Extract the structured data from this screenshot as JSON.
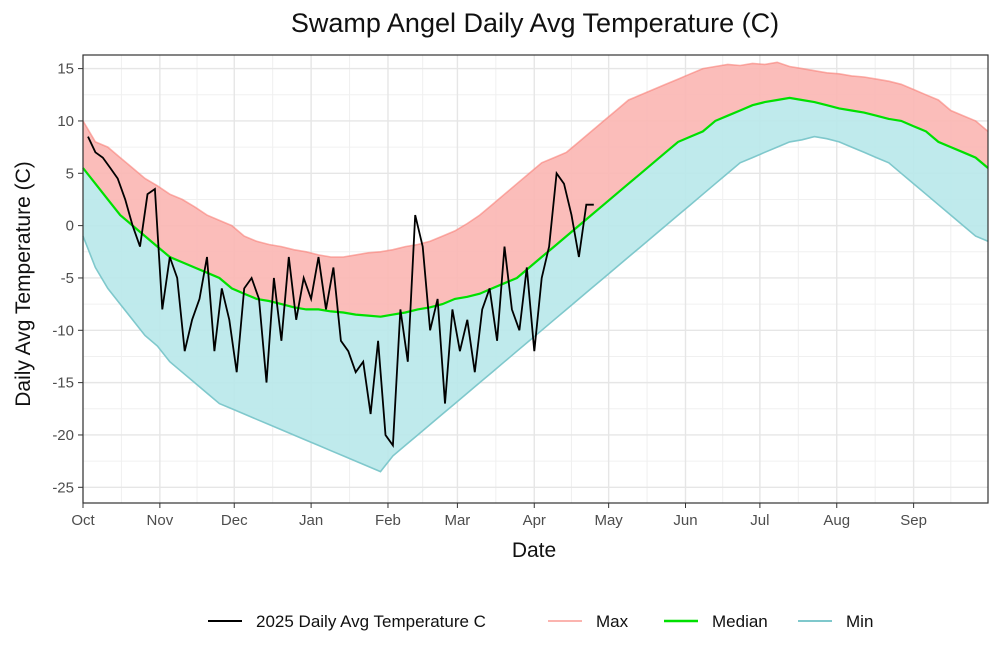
{
  "chart_data": {
    "type": "line",
    "title": "Swamp Angel Daily Avg Temperature (C)",
    "xlabel": "Date",
    "ylabel": "Daily Avg Temperature (C)",
    "xlim": [
      0,
      365
    ],
    "ylim": [
      -26.5,
      16.3
    ],
    "grid": true,
    "legend_position": "bottom",
    "x_ticks": [
      {
        "label": "Oct",
        "day": 0
      },
      {
        "label": "Nov",
        "day": 31
      },
      {
        "label": "Dec",
        "day": 61
      },
      {
        "label": "Jan",
        "day": 92
      },
      {
        "label": "Feb",
        "day": 123
      },
      {
        "label": "Mar",
        "day": 151
      },
      {
        "label": "Apr",
        "day": 182
      },
      {
        "label": "May",
        "day": 212
      },
      {
        "label": "Jun",
        "day": 243
      },
      {
        "label": "Jul",
        "day": 273
      },
      {
        "label": "Aug",
        "day": 304
      },
      {
        "label": "Sep",
        "day": 335
      }
    ],
    "y_ticks": [
      15,
      10,
      5,
      0,
      -5,
      -10,
      -15,
      -20,
      -25
    ],
    "colors": {
      "current": "#000000",
      "max": "#f8766d",
      "max_fill": "#fbb6b2",
      "median": "#00e000",
      "min": "#7fc8cc",
      "min_fill": "#b8e8ea"
    },
    "legend": [
      {
        "key": "current",
        "label": "2025 Daily Avg Temperature C"
      },
      {
        "key": "max",
        "label": "Max"
      },
      {
        "key": "median",
        "label": "Median"
      },
      {
        "key": "min",
        "label": "Min"
      }
    ],
    "series": [
      {
        "key": "max",
        "x": [
          0,
          5,
          10,
          15,
          20,
          25,
          30,
          35,
          40,
          45,
          50,
          55,
          60,
          65,
          70,
          75,
          80,
          85,
          90,
          95,
          100,
          105,
          110,
          115,
          120,
          125,
          130,
          135,
          140,
          145,
          150,
          155,
          160,
          165,
          170,
          175,
          180,
          185,
          190,
          195,
          200,
          205,
          210,
          215,
          220,
          225,
          230,
          235,
          240,
          245,
          250,
          255,
          260,
          265,
          270,
          275,
          280,
          285,
          290,
          295,
          300,
          305,
          310,
          315,
          320,
          325,
          330,
          335,
          340,
          345,
          350,
          355,
          360,
          365
        ],
        "y": [
          10,
          8,
          7.5,
          6.5,
          5.5,
          4.5,
          3.8,
          3,
          2.5,
          1.8,
          1,
          0.5,
          0,
          -1,
          -1.5,
          -1.8,
          -2,
          -2.3,
          -2.5,
          -2.8,
          -3,
          -3,
          -2.8,
          -2.6,
          -2.5,
          -2.3,
          -2,
          -1.8,
          -1.5,
          -1,
          -0.5,
          0.2,
          1,
          2,
          3,
          4,
          5,
          6,
          6.5,
          7,
          8,
          9,
          10,
          11,
          12,
          12.5,
          13,
          13.5,
          14,
          14.5,
          15,
          15.2,
          15.4,
          15.3,
          15.5,
          15.4,
          15.6,
          15.2,
          15,
          14.8,
          14.6,
          14.5,
          14.3,
          14.2,
          14,
          13.8,
          13.5,
          13,
          12.5,
          12,
          11,
          10.5,
          10,
          9
        ]
      },
      {
        "key": "median",
        "x": [
          0,
          5,
          10,
          15,
          20,
          25,
          30,
          35,
          40,
          45,
          50,
          55,
          60,
          65,
          70,
          75,
          80,
          85,
          90,
          95,
          100,
          105,
          110,
          115,
          120,
          125,
          130,
          135,
          140,
          145,
          150,
          155,
          160,
          165,
          170,
          175,
          180,
          185,
          190,
          195,
          200,
          205,
          210,
          215,
          220,
          225,
          230,
          235,
          240,
          245,
          250,
          255,
          260,
          265,
          270,
          275,
          280,
          285,
          290,
          295,
          300,
          305,
          310,
          315,
          320,
          325,
          330,
          335,
          340,
          345,
          350,
          355,
          360,
          365
        ],
        "y": [
          5.5,
          4,
          2.5,
          1,
          0,
          -1,
          -2,
          -3,
          -3.5,
          -4,
          -4.5,
          -5,
          -6,
          -6.5,
          -7,
          -7.2,
          -7.5,
          -7.8,
          -8,
          -8,
          -8.2,
          -8.3,
          -8.5,
          -8.6,
          -8.7,
          -8.5,
          -8.3,
          -8,
          -7.8,
          -7.5,
          -7,
          -6.8,
          -6.5,
          -6,
          -5.5,
          -5,
          -4,
          -3,
          -2,
          -1,
          0,
          1,
          2,
          3,
          4,
          5,
          6,
          7,
          8,
          8.5,
          9,
          10,
          10.5,
          11,
          11.5,
          11.8,
          12,
          12.2,
          12,
          11.8,
          11.5,
          11.2,
          11,
          10.8,
          10.5,
          10.2,
          10,
          9.5,
          9,
          8,
          7.5,
          7,
          6.5,
          5.5
        ]
      },
      {
        "key": "min",
        "x": [
          0,
          5,
          10,
          15,
          20,
          25,
          30,
          35,
          40,
          45,
          50,
          55,
          60,
          65,
          70,
          75,
          80,
          85,
          90,
          95,
          100,
          105,
          110,
          115,
          120,
          125,
          130,
          135,
          140,
          145,
          150,
          155,
          160,
          165,
          170,
          175,
          180,
          185,
          190,
          195,
          200,
          205,
          210,
          215,
          220,
          225,
          230,
          235,
          240,
          245,
          250,
          255,
          260,
          265,
          270,
          275,
          280,
          285,
          290,
          295,
          300,
          305,
          310,
          315,
          320,
          325,
          330,
          335,
          340,
          345,
          350,
          355,
          360,
          365
        ],
        "y": [
          -1,
          -4,
          -6,
          -7.5,
          -9,
          -10.5,
          -11.5,
          -13,
          -14,
          -15,
          -16,
          -17,
          -17.5,
          -18,
          -18.5,
          -19,
          -19.5,
          -20,
          -20.5,
          -21,
          -21.5,
          -22,
          -22.5,
          -23,
          -23.5,
          -22,
          -21,
          -20,
          -19,
          -18,
          -17,
          -16,
          -15,
          -14,
          -13,
          -12,
          -11,
          -10,
          -9,
          -8,
          -7,
          -6,
          -5,
          -4,
          -3,
          -2,
          -1,
          0,
          1,
          2,
          3,
          4,
          5,
          6,
          6.5,
          7,
          7.5,
          8,
          8.2,
          8.5,
          8.3,
          8,
          7.5,
          7,
          6.5,
          6,
          5,
          4,
          3,
          2,
          1,
          0,
          -1,
          -1.5
        ]
      },
      {
        "key": "current",
        "x": [
          2,
          5,
          8,
          11,
          14,
          17,
          20,
          23,
          26,
          29,
          32,
          35,
          38,
          41,
          44,
          47,
          50,
          53,
          56,
          59,
          62,
          65,
          68,
          71,
          74,
          77,
          80,
          83,
          86,
          89,
          92,
          95,
          98,
          101,
          104,
          107,
          110,
          113,
          116,
          119,
          122,
          125,
          128,
          131,
          134,
          137,
          140,
          143,
          146,
          149,
          152,
          155,
          158,
          161,
          164,
          167,
          170,
          173,
          176,
          179,
          182,
          185,
          188,
          191,
          194,
          197,
          200,
          203,
          206
        ],
        "y": [
          8.5,
          7,
          6.5,
          5.5,
          4.5,
          2.5,
          0,
          -2,
          3,
          3.5,
          -8,
          -3,
          -5,
          -12,
          -9,
          -7,
          -3,
          -12,
          -6,
          -9,
          -14,
          -6,
          -5,
          -7,
          -15,
          -5,
          -11,
          -3,
          -9,
          -5,
          -7,
          -3,
          -8,
          -4,
          -11,
          -12,
          -14,
          -13,
          -18,
          -11,
          -20,
          -21,
          -8,
          -13,
          1,
          -2,
          -10,
          -7,
          -17,
          -8,
          -12,
          -9,
          -14,
          -8,
          -6,
          -11,
          -2,
          -8,
          -10,
          -4,
          -12,
          -5,
          -2,
          5,
          4,
          1,
          -3,
          2,
          2
        ]
      }
    ]
  }
}
